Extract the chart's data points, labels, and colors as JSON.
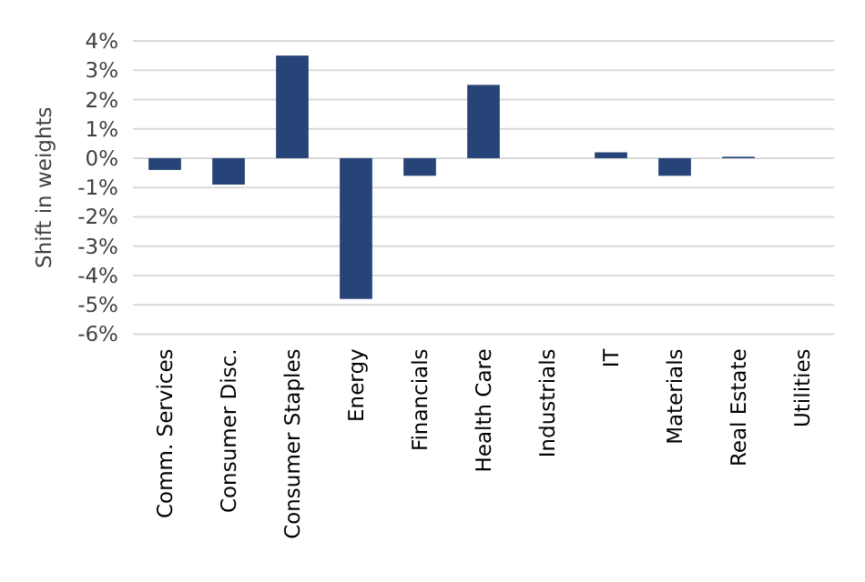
{
  "chart_data": {
    "type": "bar",
    "ylabel": "Shift in weights",
    "categories": [
      "Comm. Services",
      "Consumer Disc.",
      "Consumer Staples",
      "Energy",
      "Financials",
      "Health Care",
      "Industrials",
      "IT",
      "Materials",
      "Real Estate",
      "Utilities"
    ],
    "values": [
      -0.4,
      -0.9,
      3.5,
      -4.8,
      -0.6,
      2.5,
      0,
      0.2,
      -0.6,
      0.05,
      0
    ],
    "color": "#264478",
    "ylim": [
      -6,
      4
    ],
    "yticks": [
      {
        "value": 4,
        "label": "4%"
      },
      {
        "value": 3,
        "label": "3%"
      },
      {
        "value": 2,
        "label": "2%"
      },
      {
        "value": 1,
        "label": "1%"
      },
      {
        "value": 0,
        "label": "0%"
      },
      {
        "value": -1,
        "label": "-1%"
      },
      {
        "value": -2,
        "label": "-2%"
      },
      {
        "value": -3,
        "label": "-3%"
      },
      {
        "value": -4,
        "label": "-4%"
      },
      {
        "value": -5,
        "label": "-5%"
      },
      {
        "value": -6,
        "label": "-6%"
      }
    ],
    "grid": true
  }
}
